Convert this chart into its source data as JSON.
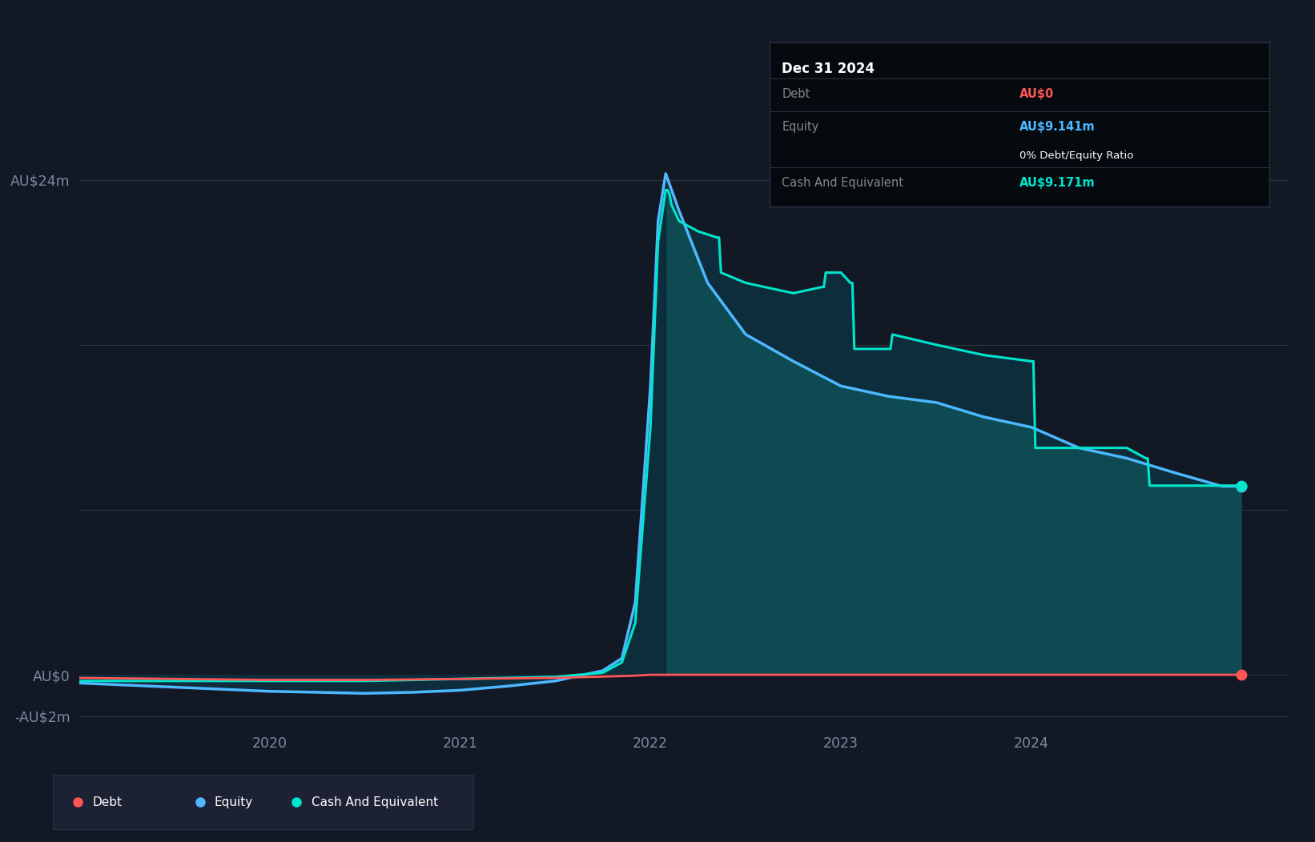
{
  "bg_color": "#131825",
  "plot_bg_color": "#131825",
  "grid_color": "#2d3548",
  "axis_label_color": "#7a8aa0",
  "text_color": "#ffffff",
  "debt_color": "#ff5555",
  "equity_color": "#4db8ff",
  "cash_color": "#00e5cc",
  "fill_between_color": "#0d2d3d",
  "fill_cash_color": "#0d4a52",
  "tooltip_bg": "#050a0f",
  "tooltip_border": "#2a3042",
  "tooltip_title": "Dec 31 2024",
  "tooltip_debt_label": "Debt",
  "tooltip_debt_value": "AU$0",
  "tooltip_equity_label": "Equity",
  "tooltip_equity_value": "AU$9.141m",
  "tooltip_ratio": "0% Debt/Equity Ratio",
  "tooltip_cash_label": "Cash And Equivalent",
  "tooltip_cash_value": "AU$9.171m",
  "legend_debt": "Debt",
  "legend_equity": "Equity",
  "legend_cash": "Cash And Equivalent"
}
